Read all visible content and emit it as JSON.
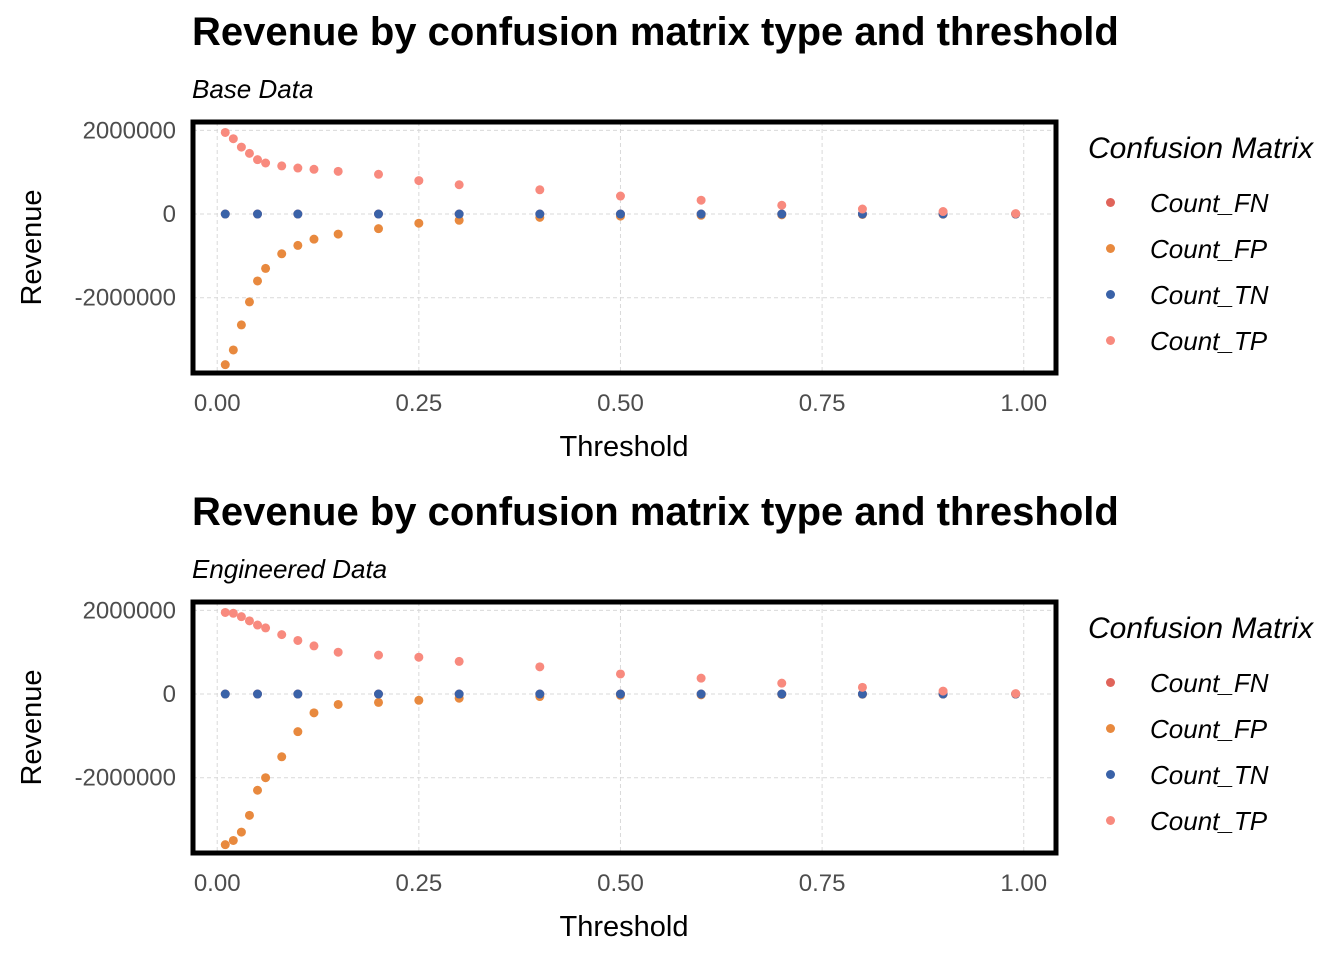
{
  "chart_data": [
    {
      "type": "scatter",
      "title": "Revenue by confusion matrix type and threshold",
      "subtitle": "Base Data",
      "xlabel": "Threshold",
      "ylabel": "Revenue",
      "xlim": [
        -0.03,
        1.04
      ],
      "ylim": [
        -3800000,
        2200000
      ],
      "x_ticks": [
        "0.00",
        "0.25",
        "0.50",
        "0.75",
        "1.00"
      ],
      "y_ticks": [
        "2000000",
        "0",
        "-2000000"
      ],
      "grid": true,
      "legend_title": "Confusion Matrix",
      "legend_position": "right",
      "series": [
        {
          "name": "Count_FN",
          "color": "#E0645A",
          "x": [
            0.01,
            0.05,
            0.1,
            0.2,
            0.3,
            0.4,
            0.5,
            0.6,
            0.7,
            0.8,
            0.9,
            0.99
          ],
          "y": [
            0,
            0,
            0,
            0,
            0,
            0,
            0,
            0,
            0,
            0,
            0,
            0
          ]
        },
        {
          "name": "Count_FP",
          "color": "#E8893E",
          "x": [
            0.01,
            0.02,
            0.03,
            0.04,
            0.05,
            0.06,
            0.08,
            0.1,
            0.12,
            0.15,
            0.2,
            0.25,
            0.3,
            0.4,
            0.5,
            0.6,
            0.7,
            0.8,
            0.9,
            0.99
          ],
          "y": [
            -3600000,
            -3250000,
            -2650000,
            -2100000,
            -1600000,
            -1300000,
            -950000,
            -750000,
            -600000,
            -480000,
            -350000,
            -220000,
            -150000,
            -80000,
            -50000,
            -30000,
            -20000,
            -10000,
            -5000,
            0
          ]
        },
        {
          "name": "Count_TN",
          "color": "#3A62A8",
          "x": [
            0.01,
            0.05,
            0.1,
            0.2,
            0.3,
            0.4,
            0.5,
            0.6,
            0.7,
            0.8,
            0.9,
            0.99
          ],
          "y": [
            0,
            0,
            0,
            0,
            0,
            0,
            0,
            0,
            0,
            0,
            0,
            0
          ]
        },
        {
          "name": "Count_TP",
          "color": "#F88A7E",
          "x": [
            0.01,
            0.02,
            0.03,
            0.04,
            0.05,
            0.06,
            0.08,
            0.1,
            0.12,
            0.15,
            0.2,
            0.25,
            0.3,
            0.4,
            0.5,
            0.6,
            0.7,
            0.8,
            0.9,
            0.99
          ],
          "y": [
            1950000,
            1800000,
            1600000,
            1450000,
            1300000,
            1220000,
            1150000,
            1100000,
            1070000,
            1020000,
            950000,
            800000,
            700000,
            580000,
            430000,
            330000,
            210000,
            120000,
            60000,
            10000
          ]
        }
      ]
    },
    {
      "type": "scatter",
      "title": "Revenue by confusion matrix type and threshold",
      "subtitle": "Engineered Data",
      "xlabel": "Threshold",
      "ylabel": "Revenue",
      "xlim": [
        -0.03,
        1.04
      ],
      "ylim": [
        -3800000,
        2200000
      ],
      "x_ticks": [
        "0.00",
        "0.25",
        "0.50",
        "0.75",
        "1.00"
      ],
      "y_ticks": [
        "2000000",
        "0",
        "-2000000"
      ],
      "grid": true,
      "legend_title": "Confusion Matrix",
      "legend_position": "right",
      "series": [
        {
          "name": "Count_FN",
          "color": "#E0645A",
          "x": [
            0.01,
            0.05,
            0.1,
            0.2,
            0.3,
            0.4,
            0.5,
            0.6,
            0.7,
            0.8,
            0.9,
            0.99
          ],
          "y": [
            0,
            0,
            0,
            0,
            0,
            0,
            0,
            0,
            0,
            0,
            0,
            0
          ]
        },
        {
          "name": "Count_FP",
          "color": "#E8893E",
          "x": [
            0.01,
            0.02,
            0.03,
            0.04,
            0.05,
            0.06,
            0.08,
            0.1,
            0.12,
            0.15,
            0.2,
            0.25,
            0.3,
            0.4,
            0.5,
            0.6,
            0.7,
            0.8,
            0.9,
            0.99
          ],
          "y": [
            -3600000,
            -3500000,
            -3300000,
            -2900000,
            -2300000,
            -2000000,
            -1500000,
            -900000,
            -450000,
            -250000,
            -200000,
            -150000,
            -100000,
            -60000,
            -30000,
            -20000,
            -10000,
            -5000,
            -2000,
            0
          ]
        },
        {
          "name": "Count_TN",
          "color": "#3A62A8",
          "x": [
            0.01,
            0.05,
            0.1,
            0.2,
            0.3,
            0.4,
            0.5,
            0.6,
            0.7,
            0.8,
            0.9,
            0.99
          ],
          "y": [
            0,
            0,
            0,
            0,
            0,
            0,
            0,
            0,
            0,
            0,
            0,
            0
          ]
        },
        {
          "name": "Count_TP",
          "color": "#F88A7E",
          "x": [
            0.01,
            0.02,
            0.03,
            0.04,
            0.05,
            0.06,
            0.08,
            0.1,
            0.12,
            0.15,
            0.2,
            0.25,
            0.3,
            0.4,
            0.5,
            0.6,
            0.7,
            0.8,
            0.9,
            0.99
          ],
          "y": [
            1950000,
            1930000,
            1850000,
            1750000,
            1650000,
            1580000,
            1420000,
            1280000,
            1150000,
            1000000,
            930000,
            880000,
            780000,
            650000,
            480000,
            380000,
            260000,
            160000,
            70000,
            10000
          ]
        }
      ]
    }
  ]
}
